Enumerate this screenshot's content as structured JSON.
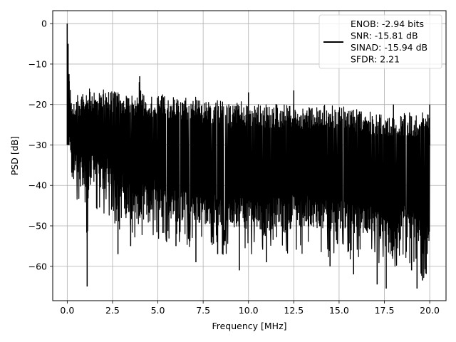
{
  "chart_data": {
    "type": "line",
    "xlabel": "Frequency [MHz]",
    "ylabel": "PSD [dB]",
    "xlim": [
      -0.8,
      20.9
    ],
    "ylim": [
      -68.5,
      3.2
    ],
    "xticks": [
      0.0,
      2.5,
      5.0,
      7.5,
      10.0,
      12.5,
      15.0,
      17.5,
      20.0
    ],
    "xtick_labels": [
      "0.0",
      "2.5",
      "5.0",
      "7.5",
      "10.0",
      "12.5",
      "15.0",
      "17.5",
      "20.0"
    ],
    "yticks": [
      0,
      -10,
      -20,
      -30,
      -40,
      -50,
      -60
    ],
    "ytick_labels": [
      "0",
      "−10",
      "−20",
      "−30",
      "−40",
      "−50",
      "−60"
    ],
    "grid": true,
    "legend_position": "top-right",
    "series": [
      {
        "name": "ENOB: -2.94 bits\nSNR: -15.81 dB\nSINAD: -15.94 dB\nSFDR: 2.21",
        "color": "#000000",
        "x": [
          0.0,
          0.02,
          0.05,
          0.1,
          0.15,
          0.2,
          0.3,
          0.4,
          0.5,
          0.6,
          0.8,
          1.0,
          1.1,
          1.2,
          1.5,
          1.7,
          2.0,
          2.2,
          2.5,
          2.6,
          2.8,
          3.0,
          3.3,
          3.5,
          3.8,
          4.0,
          4.2,
          4.5,
          4.8,
          5.0,
          5.5,
          6.0,
          6.5,
          7.0,
          7.5,
          7.8,
          8.0,
          8.5,
          9.0,
          9.5,
          10.0,
          10.5,
          11.0,
          11.5,
          12.0,
          12.5,
          13.0,
          13.5,
          14.0,
          14.5,
          15.0,
          15.5,
          16.0,
          16.5,
          17.0,
          17.5,
          18.0,
          18.5,
          19.0,
          19.2,
          19.5,
          20.0
        ],
        "upper": [
          0.0,
          -5,
          -12,
          -14,
          -15,
          -16,
          -17,
          -18,
          -17,
          -18,
          -17,
          -17,
          -17,
          -16,
          -17,
          -17,
          -16,
          -17,
          -16,
          -16,
          -17,
          -17,
          -16,
          -18,
          -17,
          -13,
          -17,
          -18,
          -17,
          -17,
          -18,
          -18,
          -18,
          -18,
          -19,
          -19,
          -19,
          -19,
          -20,
          -19,
          -20,
          -20,
          -20,
          -20,
          -20,
          -20,
          -21,
          -20,
          -20,
          -20,
          -20,
          -21,
          -21,
          -21,
          -22,
          -22,
          -22,
          -22,
          -22,
          -22,
          -22,
          -22
        ],
        "lower": [
          -28,
          -32,
          -36,
          -38,
          -40,
          -44,
          -45,
          -46,
          -44,
          -45,
          -47,
          -45,
          -65,
          -47,
          -46,
          -48,
          -48,
          -47,
          -49,
          -50,
          -53,
          -50,
          -55,
          -51,
          -55,
          -56,
          -52,
          -56,
          -52,
          -54,
          -54,
          -55,
          -55,
          -57,
          -54,
          -59,
          -55,
          -57,
          -58,
          -56,
          -57,
          -57,
          -59,
          -56,
          -58,
          -56,
          -57,
          -56,
          -57,
          -58,
          -57,
          -58,
          -59,
          -58,
          -60,
          -61,
          -65,
          -58,
          -60,
          -61,
          -62,
          -65
        ],
        "dips": [
          [
            1.1,
            -65.0
          ],
          [
            2.8,
            -57.0
          ],
          [
            3.5,
            -55.0
          ],
          [
            6.0,
            -55.0
          ],
          [
            7.1,
            -59.0
          ],
          [
            8.3,
            -57.0
          ],
          [
            9.5,
            -61.0
          ],
          [
            11.0,
            -59.0
          ],
          [
            14.5,
            -60.0
          ],
          [
            15.8,
            -62.0
          ],
          [
            17.1,
            -64.5
          ],
          [
            17.6,
            -65.5
          ],
          [
            19.0,
            -61.0
          ],
          [
            19.3,
            -65.5
          ],
          [
            19.6,
            -63.5
          ]
        ],
        "spikes": [
          [
            0.0,
            0.0
          ],
          [
            0.05,
            -5.0
          ],
          [
            0.1,
            -12.5
          ],
          [
            4.0,
            -13.0
          ],
          [
            10.0,
            -17.0
          ],
          [
            12.5,
            -16.5
          ],
          [
            18.0,
            -20.0
          ],
          [
            20.0,
            -20.0
          ]
        ]
      }
    ]
  }
}
